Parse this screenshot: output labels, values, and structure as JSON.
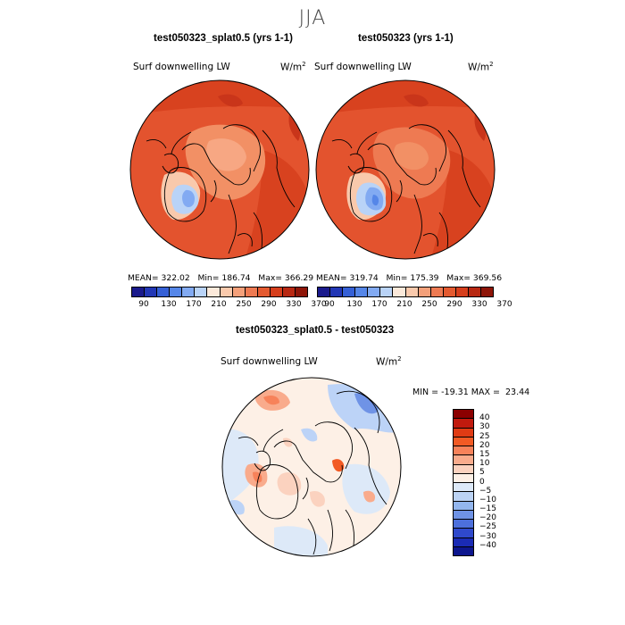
{
  "season": "JJA",
  "panels": [
    {
      "title": "test050323_splat0.5 (yrs 1-1)",
      "variable": "Surf downwelling LW",
      "units_base": "W/m",
      "units_exp": "2",
      "mean_label": "MEAN=",
      "mean": "322.02",
      "min_label": "Min=",
      "min": "186.74",
      "max_label": "Max=",
      "max": "366.29"
    },
    {
      "title": "test050323 (yrs 1-1)",
      "variable": "Surf downwelling LW",
      "units_base": "W/m",
      "units_exp": "2",
      "mean_label": "MEAN=",
      "mean": "319.74",
      "min_label": "Min=",
      "min": "175.39",
      "max_label": "Max=",
      "max": "369.56"
    }
  ],
  "colorbar_top": {
    "colors": [
      "#1a1a8c",
      "#2237b5",
      "#3560d6",
      "#5586e8",
      "#82aaf2",
      "#b9d3f7",
      "#fbe9da",
      "#f9c9ac",
      "#f4a07a",
      "#ee7a52",
      "#e45a30",
      "#d63e1c",
      "#b82812",
      "#8e1508"
    ],
    "ticks": [
      "90",
      "130",
      "170",
      "210",
      "250",
      "290",
      "330",
      "370"
    ]
  },
  "diff_panel": {
    "title": "test050323_splat0.5 - test050323",
    "variable": "Surf downwelling LW",
    "units_base": "W/m",
    "units_exp": "2",
    "min_label": "MIN =",
    "min": "-19.31",
    "max_label": "MAX =",
    "max": "23.44"
  },
  "colorbar_diff": {
    "colors": [
      "#8b0000",
      "#c11a0e",
      "#e03b14",
      "#f25a24",
      "#f7825a",
      "#f9ab8c",
      "#fbd2bf",
      "#fdf0e6",
      "#dde9f8",
      "#bcd3f4",
      "#93b6ee",
      "#6f93e6",
      "#4d70dc",
      "#2f49cc",
      "#1a2bb5",
      "#0d168e"
    ],
    "ticks": [
      "40",
      "30",
      "25",
      "20",
      "15",
      "10",
      "5",
      "0",
      "−5",
      "−10",
      "−15",
      "−20",
      "−25",
      "−30",
      "−40"
    ]
  }
}
